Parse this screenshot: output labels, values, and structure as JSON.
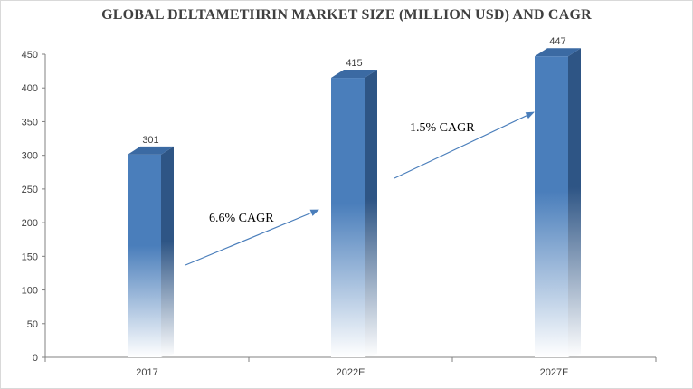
{
  "chart_data": {
    "type": "bar",
    "title": "GLOBAL DELTAMETHRIN MARKET SIZE  (MILLION USD) AND CAGR",
    "categories": [
      "2017",
      "2022E",
      "2027E"
    ],
    "values": [
      301,
      415,
      447
    ],
    "ylim": [
      0,
      450
    ],
    "yticks": [
      0,
      50,
      100,
      150,
      200,
      250,
      300,
      350,
      400,
      450
    ],
    "grid": false,
    "legend": "none",
    "annotations": [
      {
        "text": "6.6% CAGR",
        "from": "2017",
        "to": "2022E"
      },
      {
        "text": "1.5% CAGR",
        "from": "2022E",
        "to": "2027E"
      }
    ],
    "colors": {
      "bar_front": "#4a7ebb",
      "bar_side": "#2e5585",
      "bar_top": "#3b6aa3",
      "arrow": "#4a7ebb",
      "axis": "#808080"
    }
  }
}
